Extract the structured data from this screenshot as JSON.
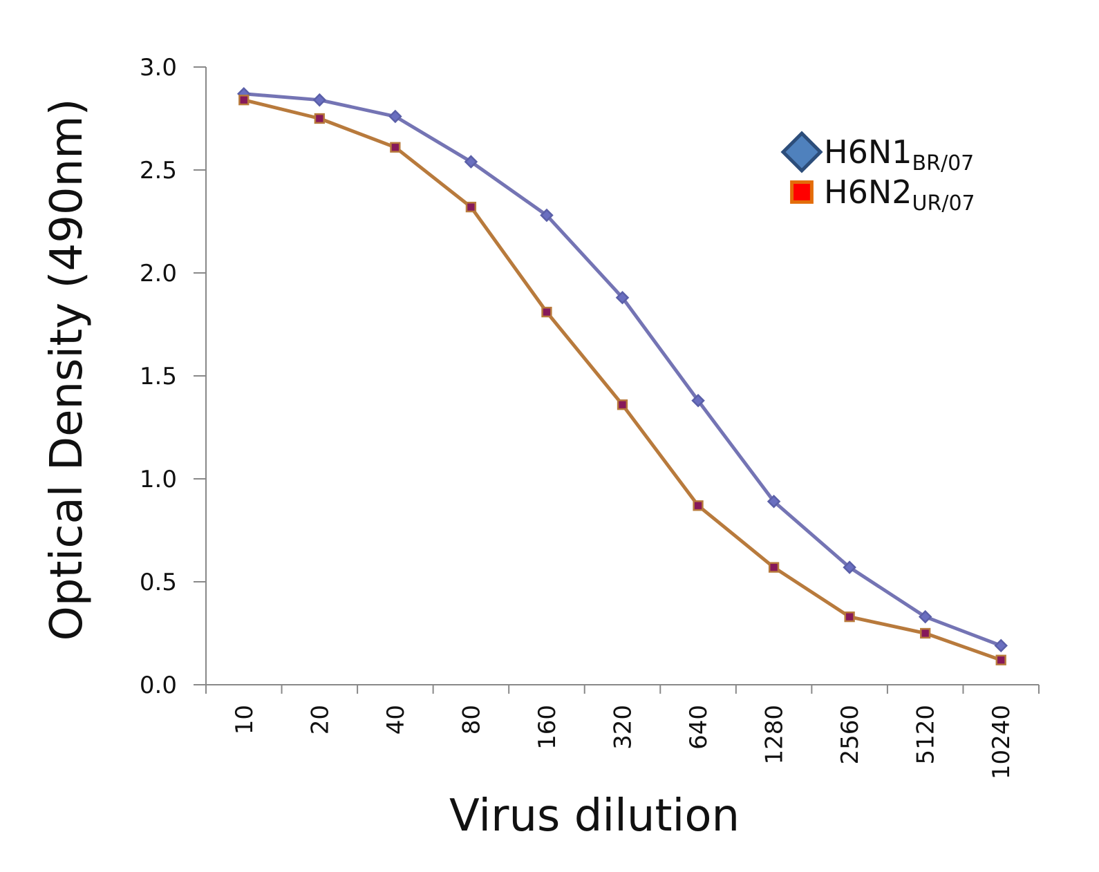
{
  "chart_data": {
    "type": "line",
    "x_label": "Virus dilution",
    "y_label": "Optical Density (490nm)",
    "categories": [
      "10",
      "20",
      "40",
      "80",
      "160",
      "320",
      "640",
      "1280",
      "2560",
      "5120",
      "10240"
    ],
    "series": [
      {
        "name": "H6N1",
        "name_subscript": "BR/07",
        "color": "#7474b4",
        "marker": "diamond",
        "marker_fill": "#6a6fc0",
        "marker_stroke": "#5a5fa8",
        "legend_fill": "#4f81bd",
        "legend_stroke": "#2c4d7a",
        "values": [
          2.87,
          2.84,
          2.76,
          2.54,
          2.28,
          1.88,
          1.38,
          0.89,
          0.57,
          0.33,
          0.19
        ]
      },
      {
        "name": "H6N2",
        "name_subscript": "UR/07",
        "color": "#b87a3c",
        "marker": "square",
        "marker_fill": "#86195a",
        "marker_stroke": "#b87a3c",
        "legend_fill": "#ff0000",
        "legend_stroke": "#e36c0a",
        "values": [
          2.84,
          2.75,
          2.61,
          2.32,
          1.81,
          1.36,
          0.87,
          0.57,
          0.33,
          0.25,
          0.12
        ]
      }
    ],
    "ylim": [
      0,
      3
    ],
    "yticks": [
      {
        "value": 0,
        "label": "0.0"
      },
      {
        "value": 0.5,
        "label": "0.5"
      },
      {
        "value": 1,
        "label": "1.0"
      },
      {
        "value": 1.5,
        "label": "1.5"
      },
      {
        "value": 2,
        "label": "2.0"
      },
      {
        "value": 2.5,
        "label": "2.5"
      },
      {
        "value": 3,
        "label": "3.0"
      }
    ],
    "grid": false,
    "legend": "upper right"
  }
}
